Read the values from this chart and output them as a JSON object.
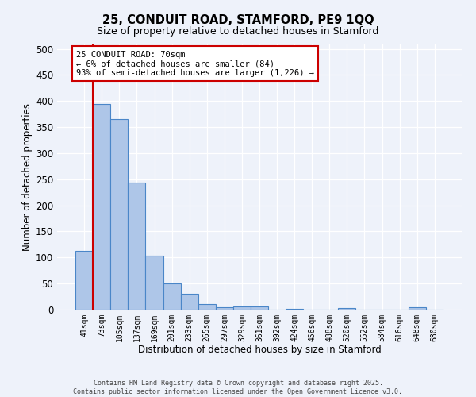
{
  "title1": "25, CONDUIT ROAD, STAMFORD, PE9 1QQ",
  "title2": "Size of property relative to detached houses in Stamford",
  "xlabel": "Distribution of detached houses by size in Stamford",
  "ylabel": "Number of detached properties",
  "bar_labels": [
    "41sqm",
    "73sqm",
    "105sqm",
    "137sqm",
    "169sqm",
    "201sqm",
    "233sqm",
    "265sqm",
    "297sqm",
    "329sqm",
    "361sqm",
    "392sqm",
    "424sqm",
    "456sqm",
    "488sqm",
    "520sqm",
    "552sqm",
    "584sqm",
    "616sqm",
    "648sqm",
    "680sqm"
  ],
  "bar_values": [
    112,
    395,
    365,
    243,
    103,
    50,
    30,
    10,
    5,
    6,
    6,
    0,
    2,
    0,
    0,
    3,
    0,
    0,
    0,
    4,
    0
  ],
  "bar_color": "#aec6e8",
  "bar_edge_color": "#4a86c8",
  "vline_color": "#cc0000",
  "annotation_title": "25 CONDUIT ROAD: 70sqm",
  "annotation_line1": "← 6% of detached houses are smaller (84)",
  "annotation_line2": "93% of semi-detached houses are larger (1,226) →",
  "annotation_box_color": "#ffffff",
  "annotation_box_edge_color": "#cc0000",
  "ylim": [
    0,
    510
  ],
  "yticks": [
    0,
    50,
    100,
    150,
    200,
    250,
    300,
    350,
    400,
    450,
    500
  ],
  "footer1": "Contains HM Land Registry data © Crown copyright and database right 2025.",
  "footer2": "Contains public sector information licensed under the Open Government Licence v3.0.",
  "bg_color": "#eef2fa",
  "plot_bg_color": "#eef2fa"
}
